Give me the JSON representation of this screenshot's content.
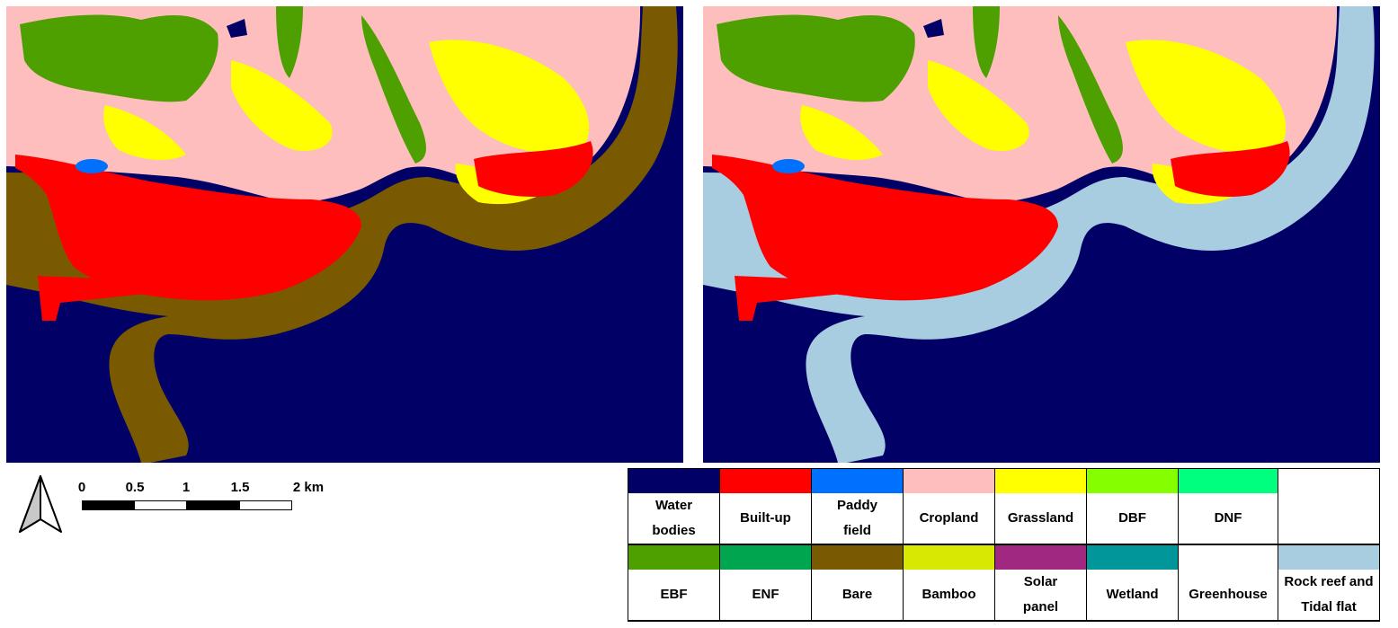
{
  "colors": {
    "water": "#000066",
    "built_up": "#ff0000",
    "paddy": "#0070ff",
    "cropland": "#ffbebe",
    "grassland": "#ffff00",
    "dbf": "#85ff00",
    "dnf": "#00ff7f",
    "ebf": "#4ea000",
    "enf": "#00a550",
    "bare": "#7a5a00",
    "bamboo": "#d8e800",
    "solar": "#a02880",
    "wetland": "#00969a",
    "greenhouse": "#ffffff",
    "rock_reef": "#a8cde0"
  },
  "maps": {
    "left": {
      "coastal_class_color": "#7a5a00"
    },
    "right": {
      "coastal_class_color": "#a8cde0"
    }
  },
  "scale_bar": {
    "ticks": [
      "0",
      "0.5",
      "1",
      "1.5",
      "2 km"
    ]
  },
  "north_arrow": {
    "icon": "north-arrow-icon"
  },
  "legend": {
    "row1": [
      {
        "label": "Water bodies",
        "lines": [
          "Water",
          "bodies"
        ],
        "color": "#000066"
      },
      {
        "label": "Built-up",
        "lines": [
          "Built-up"
        ],
        "color": "#ff0000"
      },
      {
        "label": "Paddy field",
        "lines": [
          "Paddy",
          "field"
        ],
        "color": "#0070ff"
      },
      {
        "label": "Cropland",
        "lines": [
          "Cropland"
        ],
        "color": "#ffbebe"
      },
      {
        "label": "Grassland",
        "lines": [
          "Grassland"
        ],
        "color": "#ffff00"
      },
      {
        "label": "DBF",
        "lines": [
          "DBF"
        ],
        "color": "#85ff00"
      },
      {
        "label": "DNF",
        "lines": [
          "DNF"
        ],
        "color": "#00ff7f"
      },
      {
        "label": "",
        "lines": [],
        "color": "#ffffff"
      }
    ],
    "row2": [
      {
        "label": "EBF",
        "lines": [
          "EBF"
        ],
        "color": "#4ea000"
      },
      {
        "label": "ENF",
        "lines": [
          "ENF"
        ],
        "color": "#00a550"
      },
      {
        "label": "Bare",
        "lines": [
          "Bare"
        ],
        "color": "#7a5a00"
      },
      {
        "label": "Bamboo",
        "lines": [
          "Bamboo"
        ],
        "color": "#d8e800"
      },
      {
        "label": "Solar panel",
        "lines": [
          "Solar",
          "panel"
        ],
        "color": "#a02880"
      },
      {
        "label": "Wetland",
        "lines": [
          "Wetland"
        ],
        "color": "#00969a"
      },
      {
        "label": "Greenhouse",
        "lines": [
          "Greenhouse"
        ],
        "color": "#ffffff"
      },
      {
        "label": "Rock reef and Tidal flat",
        "lines": [
          "Rock reef and",
          "Tidal flat"
        ],
        "color": "#a8cde0",
        "small": true
      }
    ]
  }
}
